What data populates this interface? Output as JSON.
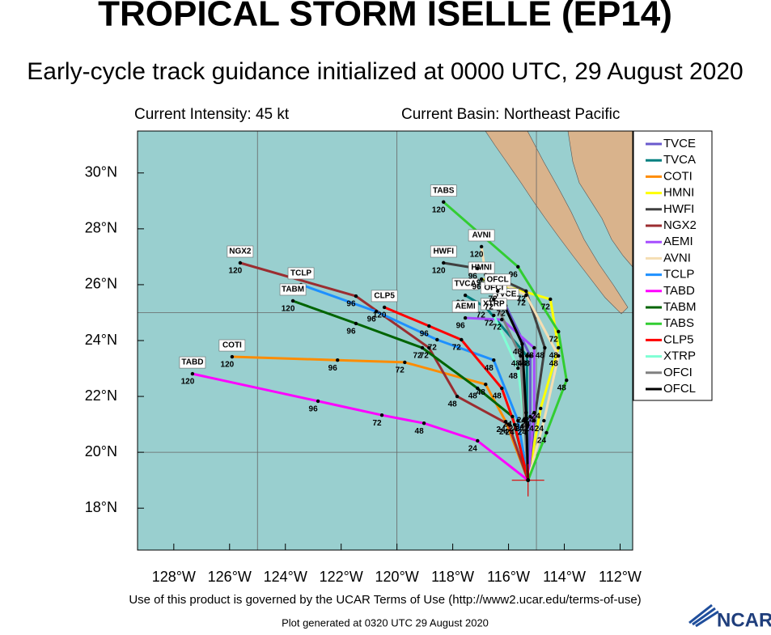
{
  "title": "TROPICAL STORM ISELLE (EP14)",
  "subtitle": "Early-cycle track guidance initialized at 0000 UTC, 29 August 2020",
  "intensity": "Current Intensity: 45 kt",
  "basin": "Current Basin: Northeast Pacific",
  "footer": "Use of this product is governed by the UCAR Terms of Use (http://www2.ucar.edu/terms-of-use)",
  "generated": "Plot generated at 0320 UTC   29 August 2020",
  "logo": "NCAR",
  "chart_data": {
    "type": "track",
    "hours": [
      0,
      24,
      48,
      72,
      96,
      120
    ],
    "initial": {
      "lon": -115.3,
      "lat": 19.0
    },
    "xlim": [
      -129.3,
      -111.55
    ],
    "ylim": [
      16.5,
      31.5
    ],
    "xticks": [
      {
        "value": -128,
        "label": "128°W"
      },
      {
        "value": -126,
        "label": "126°W"
      },
      {
        "value": -124,
        "label": "124°W"
      },
      {
        "value": -122,
        "label": "122°W"
      },
      {
        "value": -120,
        "label": "120°W"
      },
      {
        "value": -118,
        "label": "118°W"
      },
      {
        "value": -116,
        "label": "116°W"
      },
      {
        "value": -114,
        "label": "114°W"
      },
      {
        "value": -112,
        "label": "112°W"
      }
    ],
    "yticks": [
      {
        "value": 18,
        "label": "18°N"
      },
      {
        "value": 20,
        "label": "20°N"
      },
      {
        "value": 22,
        "label": "22°N"
      },
      {
        "value": 24,
        "label": "24°N"
      },
      {
        "value": 26,
        "label": "26°N"
      },
      {
        "value": 28,
        "label": "28°N"
      },
      {
        "value": 30,
        "label": "30°N"
      }
    ],
    "grid_lon": [
      -125,
      -120,
      -115
    ],
    "grid_lat": [
      20,
      25
    ],
    "series": [
      {
        "name": "TVCE",
        "color": "#6a5acd",
        "lon": [
          -115.3,
          -115.22,
          -115.22,
          -116.1,
          null,
          null
        ],
        "lat": [
          19.0,
          21.28,
          23.45,
          25.25,
          null,
          null
        ]
      },
      {
        "name": "TVCA",
        "color": "#008080",
        "lon": [
          -115.3,
          -115.34,
          -115.34,
          -116.82,
          -117.55,
          null
        ],
        "lat": [
          19.0,
          20.99,
          23.45,
          25.19,
          25.62,
          null
        ]
      },
      {
        "name": "COTI",
        "color": "#ff8c00",
        "lon": [
          -115.3,
          -116.1,
          -116.82,
          -119.72,
          -122.13,
          -125.91
        ],
        "lat": [
          19.0,
          21.1,
          22.43,
          23.22,
          23.3,
          23.42
        ]
      },
      {
        "name": "HMNI",
        "color": "#ffff00",
        "lon": [
          -115.3,
          -114.85,
          -114.21,
          -114.5,
          -116.97,
          null
        ],
        "lat": [
          19.0,
          21.57,
          23.74,
          25.48,
          26.2,
          null
        ]
      },
      {
        "name": "HWFI",
        "color": "#404040",
        "lon": [
          -115.3,
          -115.08,
          -114.7,
          -115.37,
          -117.11,
          -118.33
        ],
        "lat": [
          19.0,
          21.13,
          23.74,
          25.77,
          26.58,
          26.78
        ]
      },
      {
        "name": "NGX2",
        "color": "#9b2d30",
        "lon": [
          -115.3,
          -116.0,
          -117.84,
          -118.85,
          -121.47,
          -125.62
        ],
        "lat": [
          19.0,
          21.0,
          22.0,
          23.74,
          25.59,
          26.78
        ]
      },
      {
        "name": "AEMI",
        "color": "#a64dff",
        "lon": [
          -115.3,
          -115.08,
          -115.08,
          -116.24,
          -117.55,
          null
        ],
        "lat": [
          19.0,
          21.42,
          23.74,
          24.75,
          24.81,
          null
        ]
      },
      {
        "name": "AVNI",
        "color": "#f5deb3",
        "lon": [
          -115.3,
          -114.73,
          -114.21,
          -115.37,
          -116.82,
          -116.97
        ],
        "lat": [
          19.0,
          21.13,
          23.45,
          25.62,
          26.35,
          27.36
        ]
      },
      {
        "name": "TCLP",
        "color": "#1e90ff",
        "lon": [
          -115.3,
          -115.66,
          -116.53,
          -118.56,
          -120.74,
          -123.44
        ],
        "lat": [
          19.0,
          21.13,
          23.3,
          24.03,
          25.04,
          26.0
        ]
      },
      {
        "name": "TABD",
        "color": "#ff00ff",
        "lon": [
          -115.3,
          -117.11,
          -119.03,
          -120.54,
          -122.83,
          -127.33
        ],
        "lat": [
          19.0,
          20.41,
          21.04,
          21.33,
          21.83,
          22.81
        ]
      },
      {
        "name": "TABM",
        "color": "#006400",
        "lon": [
          -115.3,
          -115.86,
          -117.11,
          -119.09,
          -121.47,
          -123.73
        ],
        "lat": [
          19.0,
          21.28,
          22.29,
          23.74,
          24.61,
          25.42
        ]
      },
      {
        "name": "TABS",
        "color": "#32cd32",
        "lon": [
          -115.3,
          -114.64,
          -113.92,
          -114.21,
          -115.66,
          -118.33
        ],
        "lat": [
          19.0,
          20.7,
          22.58,
          24.32,
          26.64,
          28.96
        ]
      },
      {
        "name": "CLP5",
        "color": "#ff0000",
        "lon": [
          -115.3,
          -115.78,
          -116.24,
          -117.69,
          -118.85,
          -120.45
        ],
        "lat": [
          19.0,
          20.99,
          22.29,
          24.03,
          24.52,
          25.19
        ]
      },
      {
        "name": "XTRP",
        "color": "#7fffd4",
        "lon": [
          -115.3,
          -115.43,
          -115.66,
          -116.53,
          null,
          null
        ],
        "lat": [
          19.0,
          21.13,
          23.01,
          24.9,
          null,
          null
        ]
      },
      {
        "name": "OFCI",
        "color": "#808080",
        "lon": [
          -115.3,
          -115.43,
          -115.57,
          -116.53,
          null,
          null
        ],
        "lat": [
          19.0,
          21.19,
          23.45,
          25.48,
          null,
          null
        ]
      },
      {
        "name": "OFCL",
        "color": "#000000",
        "lon": [
          -115.3,
          -115.37,
          -115.51,
          -116.39,
          null,
          null
        ],
        "lat": [
          19.0,
          21.42,
          23.88,
          25.77,
          null,
          null
        ]
      }
    ]
  }
}
